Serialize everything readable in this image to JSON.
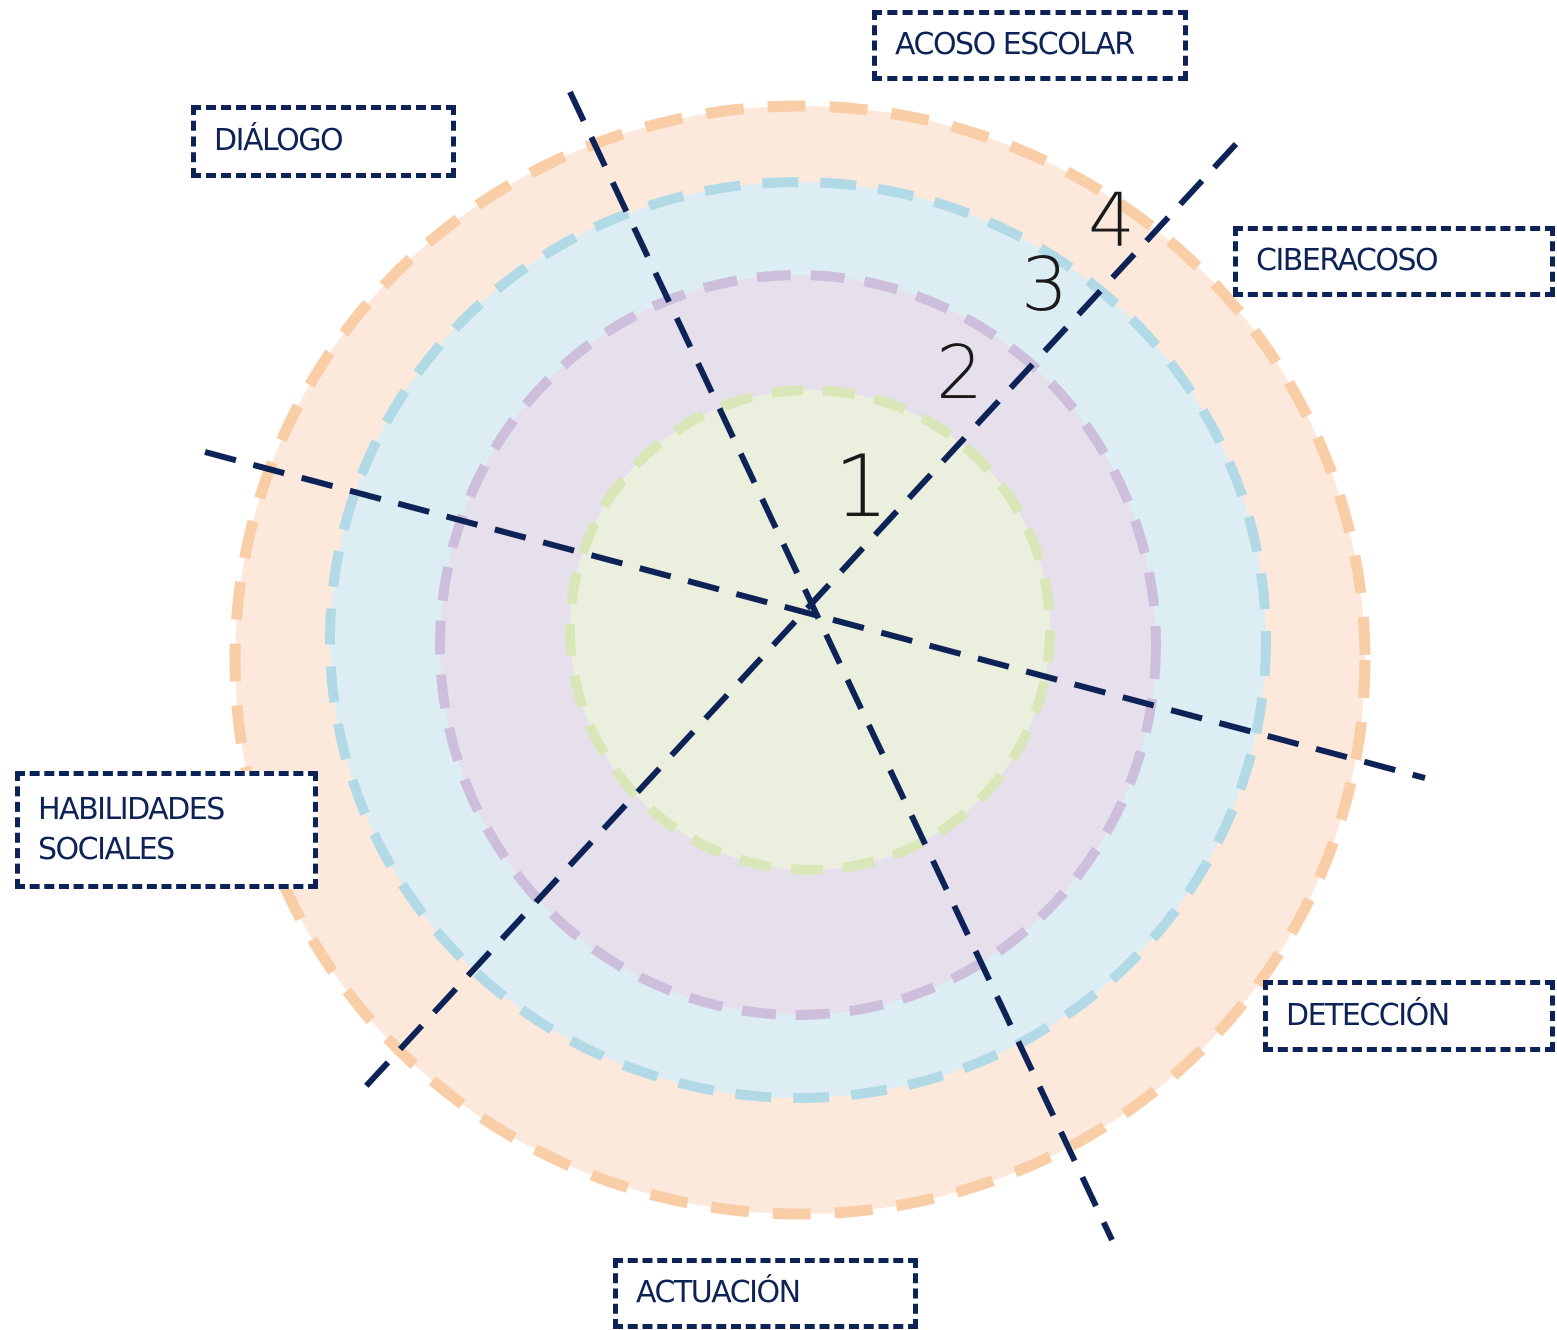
{
  "colors": {
    "ring_4_fill": "#fce9dc",
    "ring_4_stroke": "#f9cda6",
    "ring_3_fill": "#dcedf3",
    "ring_3_stroke": "#b2dae6",
    "ring_2_fill": "#e6e0ec",
    "ring_2_stroke": "#cdbfdb",
    "ring_1_fill": "#ebf0de",
    "ring_1_stroke": "#d9e6b8",
    "axis_line": "#0d2257",
    "label_border": "#0d2257"
  },
  "ring_numbers": {
    "ring_1": "1",
    "ring_2": "2",
    "ring_3": "3",
    "ring_4": "4"
  },
  "labels": {
    "acoso_escolar": "ACOSO ESCOLAR",
    "dialogo": "DIÁLOGO",
    "ciberacoso": "CIBERACOSO",
    "habilidades_sociales": "HABILIDADES\nSOCIALES",
    "deteccion": "DETECCIÓN",
    "actuacion": "ACTUACIÓN"
  }
}
